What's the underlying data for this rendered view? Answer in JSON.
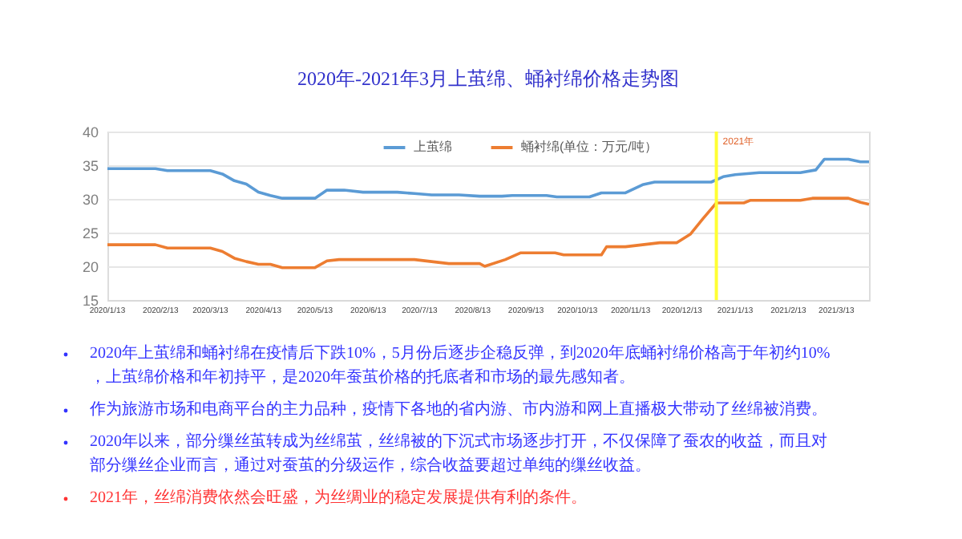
{
  "chart_data": {
    "type": "line",
    "title": "2020年-2021年3月上茧绵、蛹衬绵价格走势图",
    "series": [
      {
        "name": "上茧绵",
        "color": "#5b9bd5",
        "x": [
          "2020-01-13",
          "2020-02-10",
          "2020-02-17",
          "2020-03-13",
          "2020-03-20",
          "2020-03-27",
          "2020-04-03",
          "2020-04-10",
          "2020-04-17",
          "2020-04-24",
          "2020-05-13",
          "2020-05-20",
          "2020-05-30",
          "2020-06-10",
          "2020-06-30",
          "2020-07-10",
          "2020-07-20",
          "2020-08-05",
          "2020-08-17",
          "2020-08-30",
          "2020-09-05",
          "2020-09-25",
          "2020-10-01",
          "2020-10-20",
          "2020-10-27",
          "2020-11-10",
          "2020-11-20",
          "2020-11-27",
          "2020-12-30",
          "2021-01-06",
          "2021-01-13",
          "2021-01-27",
          "2021-02-20",
          "2021-03-01",
          "2021-03-06",
          "2021-03-20",
          "2021-03-27",
          "2021-04-01"
        ],
        "values": [
          34.5,
          34.5,
          34.2,
          34.2,
          33.7,
          32.7,
          32.2,
          31.0,
          30.5,
          30.1,
          30.1,
          31.3,
          31.3,
          31.0,
          31.0,
          30.8,
          30.6,
          30.6,
          30.4,
          30.4,
          30.5,
          30.5,
          30.3,
          30.3,
          30.9,
          30.9,
          32.1,
          32.5,
          32.5,
          33.3,
          33.6,
          33.9,
          33.9,
          34.3,
          35.9,
          35.9,
          35.5,
          35.5
        ]
      },
      {
        "name": "蛹衬绵(单位：万元/吨）",
        "color": "#ed7d31",
        "x": [
          "2020-01-13",
          "2020-02-10",
          "2020-02-17",
          "2020-03-13",
          "2020-03-20",
          "2020-03-27",
          "2020-04-03",
          "2020-04-10",
          "2020-04-17",
          "2020-04-24",
          "2020-05-13",
          "2020-05-20",
          "2020-05-27",
          "2020-07-10",
          "2020-07-20",
          "2020-07-30",
          "2020-08-17",
          "2020-08-20",
          "2020-09-01",
          "2020-09-10",
          "2020-09-30",
          "2020-10-05",
          "2020-10-27",
          "2020-10-30",
          "2020-11-10",
          "2020-11-30",
          "2020-12-10",
          "2020-12-18",
          "2020-12-25",
          "2021-01-02",
          "2021-01-18",
          "2021-01-22",
          "2021-02-20",
          "2021-02-27",
          "2021-03-20",
          "2021-03-27",
          "2021-04-01"
        ],
        "values": [
          23.2,
          23.2,
          22.7,
          22.7,
          22.2,
          21.2,
          20.7,
          20.3,
          20.3,
          19.8,
          19.8,
          20.8,
          21.0,
          21.0,
          20.7,
          20.4,
          20.4,
          20.0,
          21.0,
          22.0,
          22.0,
          21.7,
          21.7,
          22.9,
          22.9,
          23.5,
          23.5,
          24.8,
          27.0,
          29.4,
          29.4,
          29.8,
          29.8,
          30.1,
          30.1,
          29.5,
          29.2
        ]
      }
    ],
    "xlim": [
      "2020-01-13",
      "2021-04-01"
    ],
    "xticks": [
      {
        "value": "2020-01-13",
        "label": "2020/1/13"
      },
      {
        "value": "2020-02-13",
        "label": "2020/2/13"
      },
      {
        "value": "2020-03-13",
        "label": "2020/3/13"
      },
      {
        "value": "2020-04-13",
        "label": "2020/4/13"
      },
      {
        "value": "2020-05-13",
        "label": "2020/5/13"
      },
      {
        "value": "2020-06-13",
        "label": "2020/6/13"
      },
      {
        "value": "2020-07-13",
        "label": "2020/7/13"
      },
      {
        "value": "2020-08-13",
        "label": "2020/8/13"
      },
      {
        "value": "2020-09-13",
        "label": "2020/9/13"
      },
      {
        "value": "2020-10-13",
        "label": "2020/10/13"
      },
      {
        "value": "2020-11-13",
        "label": "2020/11/13"
      },
      {
        "value": "2020-12-13",
        "label": "2020/12/13"
      },
      {
        "value": "2021-01-13",
        "label": "2021/1/13"
      },
      {
        "value": "2021-02-13",
        "label": "2021/2/13"
      },
      {
        "value": "2021-03-13",
        "label": "2021/3/13"
      }
    ],
    "ylim": [
      15,
      40
    ],
    "yticks": [
      15,
      20,
      25,
      30,
      35,
      40
    ],
    "grid": "y",
    "legend": "top",
    "marker": "none",
    "line_style": "solid",
    "ref_lines": [
      {
        "axis": "x",
        "value": "2021-01-02",
        "label": "2021年",
        "color": "#ffff33"
      }
    ],
    "annotations": [
      "2020年上茧绵和蛹衬绵在疫情后下跌10%，5月份后逐步企稳反弹，到2020年底蛹衬绵价格高于年初约10%，上茧绵价格和年初持平，是2020年蚕茧价格的托底者和市场的最先感知者。",
      "作为旅游市场和电商平台的主力品种，疫情下各地的省内游、市内游和网上直播极大带动了丝绵被消费。",
      "2020年以来，部分缫丝茧转成为丝绵茧，丝绵被的下沉式市场逐步打开，不仅保障了蚕农的收益，而且对部分缫丝企业而言，通过对蚕茧的分级运作，综合收益要超过单纯的缫丝收益。",
      "2021年，丝绵消费依然会旺盛，为丝绸业的稳定发展提供有利的条件。"
    ]
  }
}
